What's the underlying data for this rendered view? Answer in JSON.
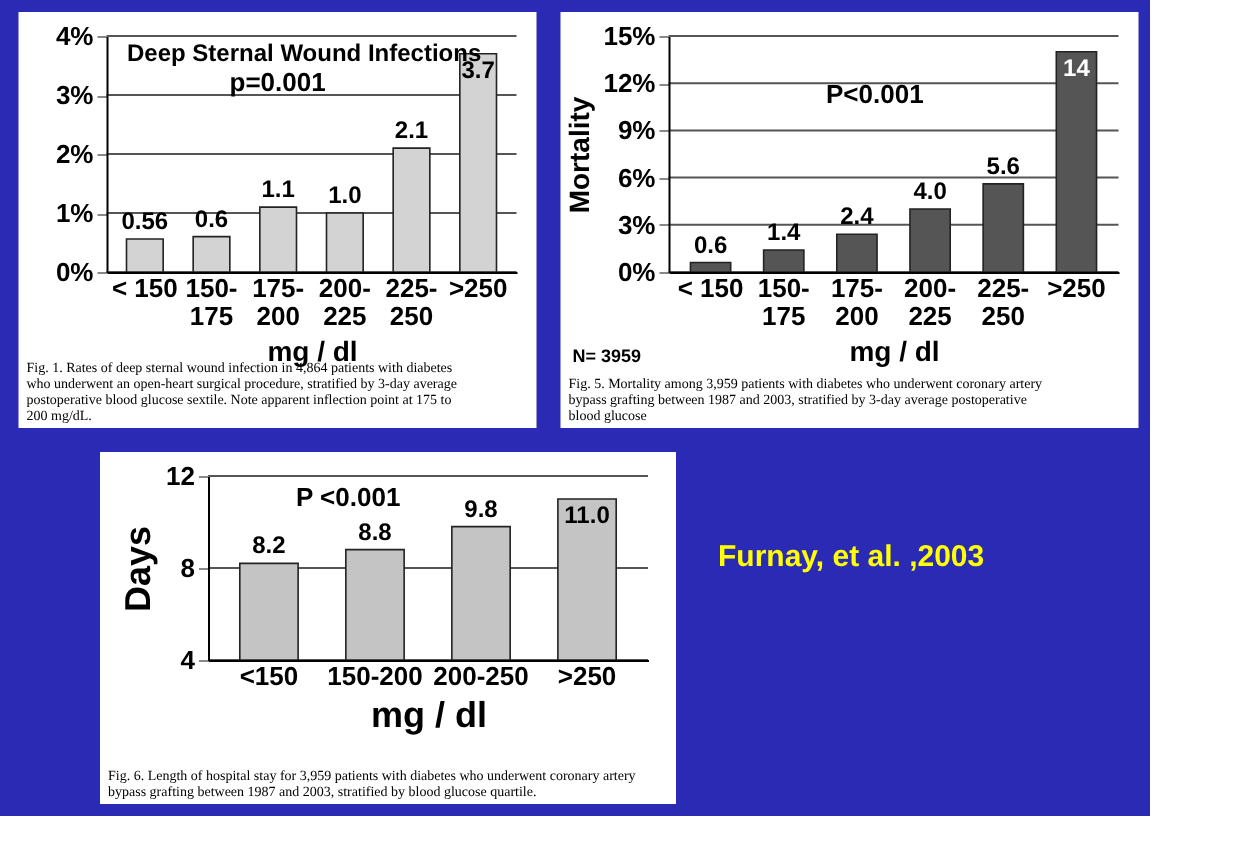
{
  "chart_data": [
    {
      "type": "bar",
      "title": "Deep Sternal Wound Infections",
      "xlabel": "mg / dl",
      "categories": [
        "< 150",
        "150-175",
        "175-200",
        "200-225",
        "225-250",
        ">250"
      ],
      "values": [
        0.56,
        0.6,
        1.1,
        1.0,
        2.1,
        3.7
      ],
      "value_labels": [
        "0.56",
        "0.6",
        "1.1",
        "1.0",
        "2.1",
        "3.7"
      ],
      "color": "#d3d3d3",
      "ylim": [
        0,
        4
      ],
      "yticks": [
        {
          "value": 0,
          "label": "0%"
        },
        {
          "value": 1,
          "label": "1%"
        },
        {
          "value": 2,
          "label": "2%"
        },
        {
          "value": 3,
          "label": "3%"
        },
        {
          "value": 4,
          "label": "4%"
        }
      ],
      "grid": "y",
      "annotations": [
        "p=0.001",
        "Fig. 1. Rates of deep sternal wound infection in 4,864 patients with diabetes who underwent an open-heart surgical procedure, stratified by 3-day average postoperative blood glucose sextile. Note apparent inflection point at 175 to 200 mg/dL."
      ]
    },
    {
      "type": "bar",
      "ylabel": "Mortality",
      "xlabel": "mg / dl",
      "categories": [
        "< 150",
        "150-175",
        "175-200",
        "200-225",
        "225-250",
        ">250"
      ],
      "values": [
        0.6,
        1.4,
        2.4,
        4.0,
        5.6,
        14
      ],
      "value_labels": [
        "0.6",
        "1.4",
        "2.4",
        "4.0",
        "5.6",
        "14"
      ],
      "color": "#555555",
      "ylim": [
        0,
        15
      ],
      "yticks": [
        {
          "value": 0,
          "label": "0%"
        },
        {
          "value": 3,
          "label": "3%"
        },
        {
          "value": 6,
          "label": "6%"
        },
        {
          "value": 9,
          "label": "9%"
        },
        {
          "value": 12,
          "label": "12%"
        },
        {
          "value": 15,
          "label": "15%"
        }
      ],
      "grid": "y",
      "annotations": [
        "P<0.001",
        "N= 3959",
        "Fig. 5. Mortality among 3,959 patients with diabetes who underwent coronary artery bypass grafting between 1987 and 2003, stratified by 3-day average postoperative blood glucose"
      ]
    },
    {
      "type": "bar",
      "ylabel": "Days",
      "xlabel": "mg / dl",
      "categories": [
        "<150",
        "150-200",
        "200-250",
        ">250"
      ],
      "values": [
        8.2,
        8.8,
        9.8,
        11.0
      ],
      "value_labels": [
        "8.2",
        "8.8",
        "9.8",
        "11.0"
      ],
      "color": "#c4c4c4",
      "ylim": [
        4,
        12
      ],
      "yticks": [
        4,
        8,
        12
      ],
      "grid": "y",
      "annotations": [
        "P <0.001",
        "Fig. 6. Length of hospital stay for 3,959 patients with diabetes who underwent coronary artery bypass grafting between 1987 and 2003, stratified by blood glucose quartile."
      ]
    },
    {
      "type": "other",
      "annotations": [
        "Furnay, et al. ,2003"
      ]
    }
  ]
}
